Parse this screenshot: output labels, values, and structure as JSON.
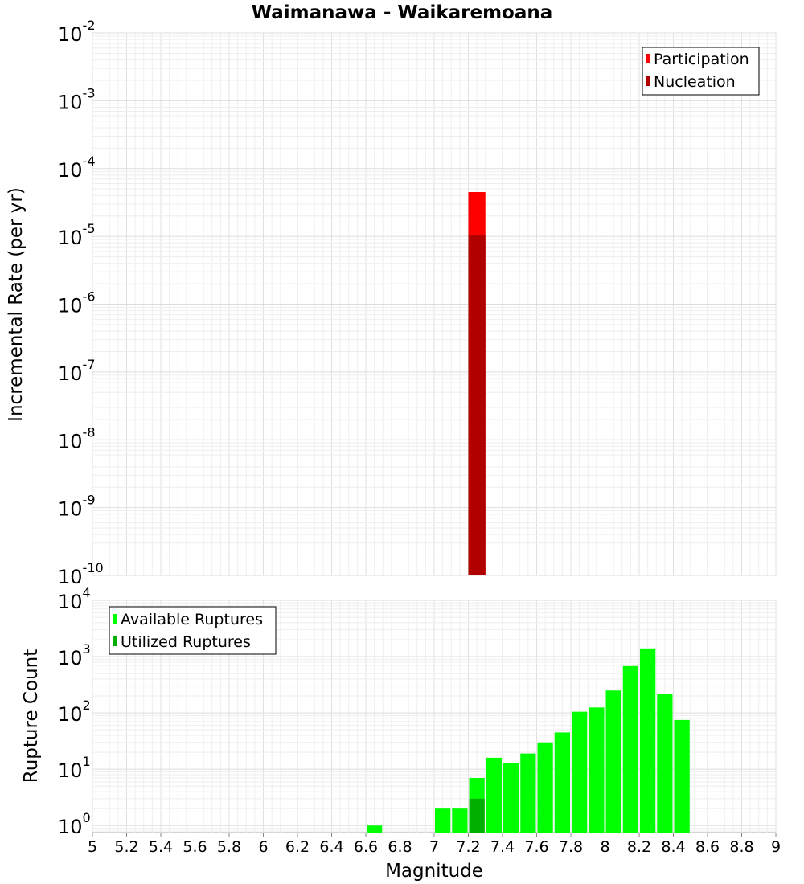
{
  "chart_data": [
    {
      "type": "bar",
      "title": "Waimanawa - Waikaremoana",
      "xlabel": "",
      "ylabel": "Incremental Rate (per yr)",
      "x_range": [
        5,
        9
      ],
      "y_scale": "log",
      "ylim": [
        1e-10,
        0.01
      ],
      "y_ticks": [
        {
          "base": "10",
          "exp": "-2"
        },
        {
          "base": "10",
          "exp": "-3"
        },
        {
          "base": "10",
          "exp": "-4"
        },
        {
          "base": "10",
          "exp": "-5"
        },
        {
          "base": "10",
          "exp": "-6"
        },
        {
          "base": "10",
          "exp": "-7"
        },
        {
          "base": "10",
          "exp": "-8"
        },
        {
          "base": "10",
          "exp": "-9"
        },
        {
          "base": "10",
          "exp": "-10"
        }
      ],
      "grid": true,
      "legend": "top-right",
      "bin_width": 0.1,
      "series": [
        {
          "name": "Participation",
          "color": "#ff0000",
          "points": [
            {
              "x": 7.25,
              "y": 4.5e-05
            }
          ]
        },
        {
          "name": "Nucleation",
          "color": "#b00000",
          "points": [
            {
              "x": 7.25,
              "y": 1.05e-05
            }
          ]
        }
      ]
    },
    {
      "type": "bar",
      "title": "",
      "xlabel": "Magnitude",
      "ylabel": "Rupture Count",
      "x_range": [
        5,
        9
      ],
      "x_ticks": [
        "5",
        "5.2",
        "5.4",
        "5.6",
        "5.8",
        "6",
        "6.2",
        "6.4",
        "6.6",
        "6.8",
        "7",
        "7.2",
        "7.4",
        "7.6",
        "7.8",
        "8",
        "8.2",
        "8.4",
        "8.6",
        "8.8",
        "9"
      ],
      "y_scale": "log",
      "ylim": [
        0.75,
        10000
      ],
      "y_ticks": [
        {
          "base": "10",
          "exp": "4"
        },
        {
          "base": "10",
          "exp": "3"
        },
        {
          "base": "10",
          "exp": "2"
        },
        {
          "base": "10",
          "exp": "1"
        },
        {
          "base": "10",
          "exp": "0"
        }
      ],
      "grid": true,
      "legend": "top-left",
      "bin_width": 0.1,
      "series": [
        {
          "name": "Available Ruptures",
          "color": "#00ff00",
          "points": [
            {
              "x": 6.65,
              "y": 1
            },
            {
              "x": 7.05,
              "y": 2
            },
            {
              "x": 7.15,
              "y": 2
            },
            {
              "x": 7.25,
              "y": 7
            },
            {
              "x": 7.35,
              "y": 16
            },
            {
              "x": 7.45,
              "y": 13
            },
            {
              "x": 7.55,
              "y": 19
            },
            {
              "x": 7.65,
              "y": 30
            },
            {
              "x": 7.75,
              "y": 45
            },
            {
              "x": 7.85,
              "y": 105
            },
            {
              "x": 7.95,
              "y": 125
            },
            {
              "x": 8.05,
              "y": 250
            },
            {
              "x": 8.15,
              "y": 680
            },
            {
              "x": 8.25,
              "y": 1400
            },
            {
              "x": 8.35,
              "y": 215
            },
            {
              "x": 8.45,
              "y": 75
            }
          ]
        },
        {
          "name": "Utilized Ruptures",
          "color": "#00b000",
          "points": [
            {
              "x": 7.25,
              "y": 3
            }
          ]
        }
      ]
    }
  ]
}
